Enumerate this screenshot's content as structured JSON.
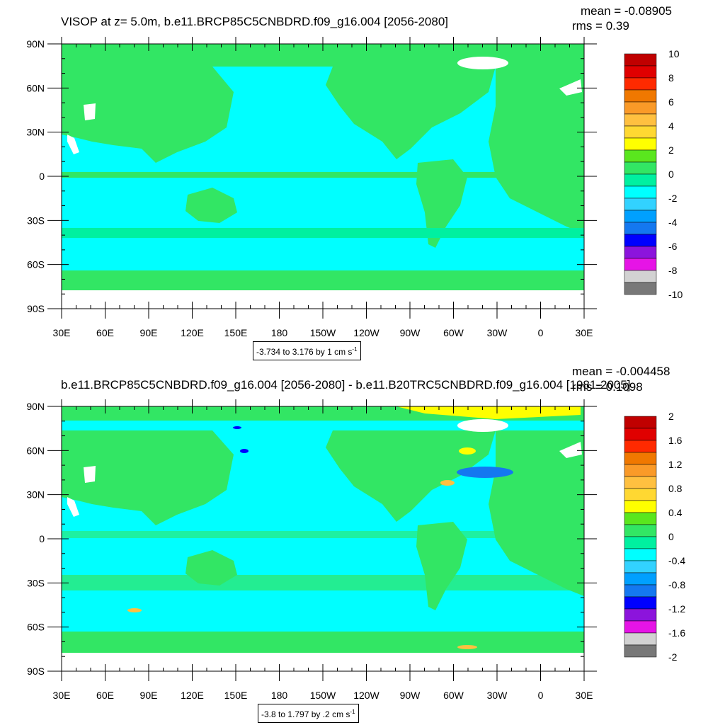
{
  "panels": [
    {
      "title": "VISOP at z=   5.0m, b.e11.BRCP85C5CNBDRD.f09_g16.004 [2056-2080]",
      "mean": "mean = -0.08905",
      "rms": "rms = 0.39",
      "range_text": "-3.734 to 3.176 by 1 cm s",
      "range_unit_sup": "-1",
      "lat_ticks": [
        "90N",
        "60N",
        "30N",
        "0",
        "30S",
        "60S",
        "90S"
      ],
      "lon_ticks": [
        "30E",
        "60E",
        "90E",
        "120E",
        "150E",
        "180",
        "150W",
        "120W",
        "90W",
        "60W",
        "30W",
        "0",
        "30E"
      ],
      "colorbar_labels": [
        "10",
        "8",
        "6",
        "4",
        "2",
        "0",
        "-2",
        "-4",
        "-6",
        "-8",
        "-10"
      ],
      "colorbar_colors": [
        "#c00000",
        "#e00000",
        "#ff2a00",
        "#f07800",
        "#fa9a28",
        "#ffc040",
        "#ffd832",
        "#ffff00",
        "#5ae61e",
        "#32e664",
        "#00f0a0",
        "#00ffff",
        "#32d2ff",
        "#00a0ff",
        "#1478f0",
        "#0000ff",
        "#8c14dc",
        "#e614e6",
        "#d2d2d2",
        "#787878"
      ]
    },
    {
      "title": "b.e11.BRCP85C5CNBDRD.f09_g16.004 [2056-2080] - b.e11.B20TRC5CNBDRD.f09_g16.004 [1981-2005]",
      "mean": "mean = -0.004458",
      "rms": "rms = 0.1098",
      "range_text": "-3.8 to 1.797 by .2 cm s",
      "range_unit_sup": "-1",
      "lat_ticks": [
        "90N",
        "60N",
        "30N",
        "0",
        "30S",
        "60S",
        "90S"
      ],
      "lon_ticks": [
        "30E",
        "60E",
        "90E",
        "120E",
        "150E",
        "180",
        "150W",
        "120W",
        "90W",
        "60W",
        "30W",
        "0",
        "30E"
      ],
      "colorbar_labels": [
        "2",
        "1.6",
        "1.2",
        "0.8",
        "0.4",
        "0",
        "-0.4",
        "-0.8",
        "-1.2",
        "-1.6",
        "-2"
      ],
      "colorbar_colors": [
        "#c00000",
        "#e00000",
        "#ff2a00",
        "#f07800",
        "#fa9a28",
        "#ffc040",
        "#ffd832",
        "#ffff00",
        "#5ae61e",
        "#32e664",
        "#00f0a0",
        "#00ffff",
        "#32d2ff",
        "#00a0ff",
        "#1478f0",
        "#0000ff",
        "#8c14dc",
        "#e614e6",
        "#d2d2d2",
        "#787878"
      ]
    }
  ],
  "fill_colors": {
    "land": "#32e664",
    "ocean_near_zero": "#00ffff",
    "ocean_teal": "#00f0a0",
    "missing": "#ffffff",
    "positive_anomaly": "#ffff00",
    "negative_anomaly": "#0000ff"
  }
}
